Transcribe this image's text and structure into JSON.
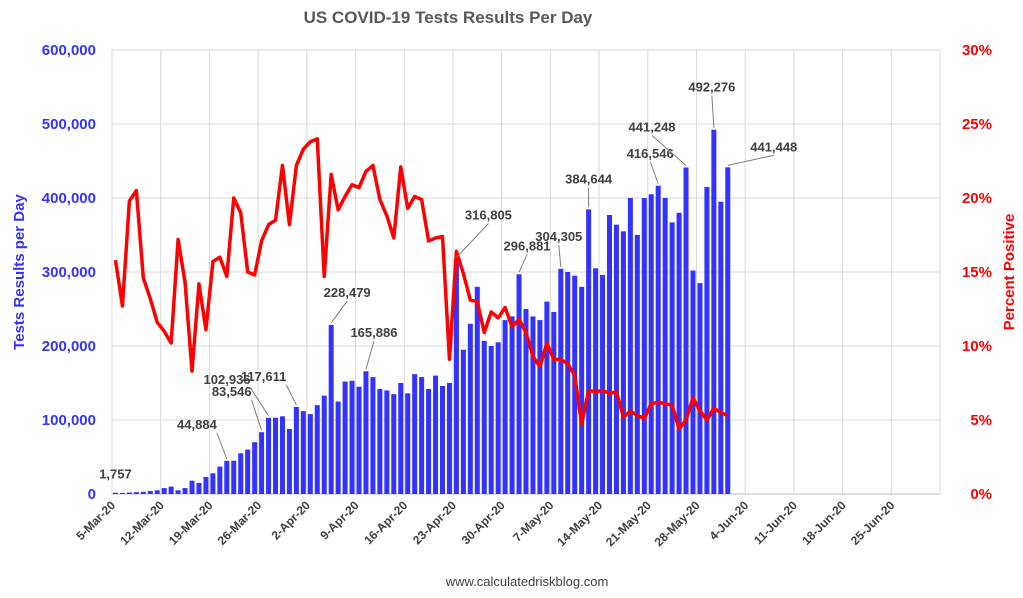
{
  "source_text": "www.calculatedriskblog.com",
  "colors": {
    "bars": "#3333ff",
    "line": "#ff0000",
    "grid": "#d9d9d9",
    "text": "#404040"
  },
  "chart_data": {
    "type": "bar",
    "title": "US COVID-19 Tests Results Per Day",
    "ylabel": "Tests Results per Day",
    "y2label": "Percent Positive",
    "ylim": [
      0,
      600000
    ],
    "y2lim": [
      0,
      30
    ],
    "yticks": [
      "0",
      "100,000",
      "200,000",
      "300,000",
      "400,000",
      "500,000",
      "600,000"
    ],
    "y2ticks": [
      "0%",
      "5%",
      "10%",
      "15%",
      "20%",
      "25%",
      "30%"
    ],
    "xlim": [
      "2020-03-05",
      "2020-07-02"
    ],
    "xticks": [
      "5-Mar-20",
      "12-Mar-20",
      "19-Mar-20",
      "26-Mar-20",
      "2-Apr-20",
      "9-Apr-20",
      "16-Apr-20",
      "23-Apr-20",
      "30-Apr-20",
      "7-May-20",
      "14-May-20",
      "21-May-20",
      "28-May-20",
      "4-Jun-20",
      "11-Jun-20",
      "18-Jun-20",
      "25-Jun-20"
    ],
    "grid": true,
    "first_date": "2020-03-05",
    "series": [
      {
        "name": "Tests Results per Day",
        "kind": "bar",
        "axis": "left",
        "values": [
          1757,
          1500,
          2000,
          2500,
          3000,
          4000,
          5000,
          8000,
          10000,
          5000,
          8000,
          18000,
          15000,
          23000,
          28000,
          37000,
          44884,
          45000,
          55000,
          60000,
          70000,
          83546,
          102936,
          103000,
          105000,
          88000,
          117611,
          112000,
          108000,
          120000,
          133000,
          228479,
          125000,
          152000,
          153000,
          145000,
          165886,
          158000,
          142000,
          140000,
          135000,
          150000,
          136000,
          162000,
          158000,
          142000,
          160000,
          146000,
          150000,
          316805,
          195000,
          230000,
          280000,
          207000,
          200000,
          205000,
          235000,
          240000,
          296881,
          250000,
          240000,
          235000,
          260000,
          246000,
          304305,
          300000,
          295000,
          280000,
          384644,
          305000,
          296000,
          377000,
          364000,
          355000,
          400000,
          350000,
          400000,
          405000,
          416546,
          400000,
          367000,
          380000,
          441248,
          302000,
          285000,
          415000,
          492276,
          395000,
          441448
        ]
      },
      {
        "name": "Percent Positive",
        "kind": "line",
        "axis": "right",
        "values": [
          15.8,
          12.7,
          19.8,
          20.5,
          14.6,
          13.2,
          11.6,
          11.0,
          10.2,
          17.2,
          14.3,
          8.3,
          14.2,
          11.1,
          15.7,
          16.0,
          14.7,
          20.0,
          19.0,
          15.0,
          14.8,
          17.1,
          18.2,
          18.5,
          22.2,
          18.2,
          22.2,
          23.3,
          23.8,
          24.0,
          14.7,
          21.6,
          19.2,
          20.1,
          20.9,
          20.7,
          21.8,
          22.2,
          19.9,
          18.8,
          17.3,
          22.1,
          19.3,
          20.1,
          19.9,
          17.1,
          17.3,
          17.4,
          9.1,
          16.4,
          14.9,
          13.1,
          13.0,
          10.9,
          12.3,
          11.9,
          12.6,
          11.3,
          11.8,
          10.9,
          9.3,
          8.6,
          10.2,
          9.1,
          9.1,
          8.8,
          8.0,
          4.7,
          7.0,
          6.9,
          7.0,
          6.8,
          6.9,
          5.2,
          5.6,
          5.3,
          5.1,
          6.1,
          6.2,
          6.1,
          6.0,
          4.4,
          5.0,
          6.5,
          5.6,
          5.0,
          5.8,
          5.5,
          5.3
        ]
      }
    ],
    "annotations": [
      {
        "label": "1,757",
        "index": 0
      },
      {
        "label": "44,884",
        "index": 16
      },
      {
        "label": "83,546",
        "index": 21
      },
      {
        "label": "102,936",
        "index": 22
      },
      {
        "label": "117,611",
        "index": 26
      },
      {
        "label": "228,479",
        "index": 31
      },
      {
        "label": "165,886",
        "index": 36
      },
      {
        "label": "316,805",
        "index": 49
      },
      {
        "label": "296,881",
        "index": 58
      },
      {
        "label": "304,305",
        "index": 64
      },
      {
        "label": "384,644",
        "index": 68
      },
      {
        "label": "416,546",
        "index": 78
      },
      {
        "label": "441,248",
        "index": 82
      },
      {
        "label": "492,276",
        "index": 86
      },
      {
        "label": "441,448",
        "index": 88
      }
    ]
  }
}
